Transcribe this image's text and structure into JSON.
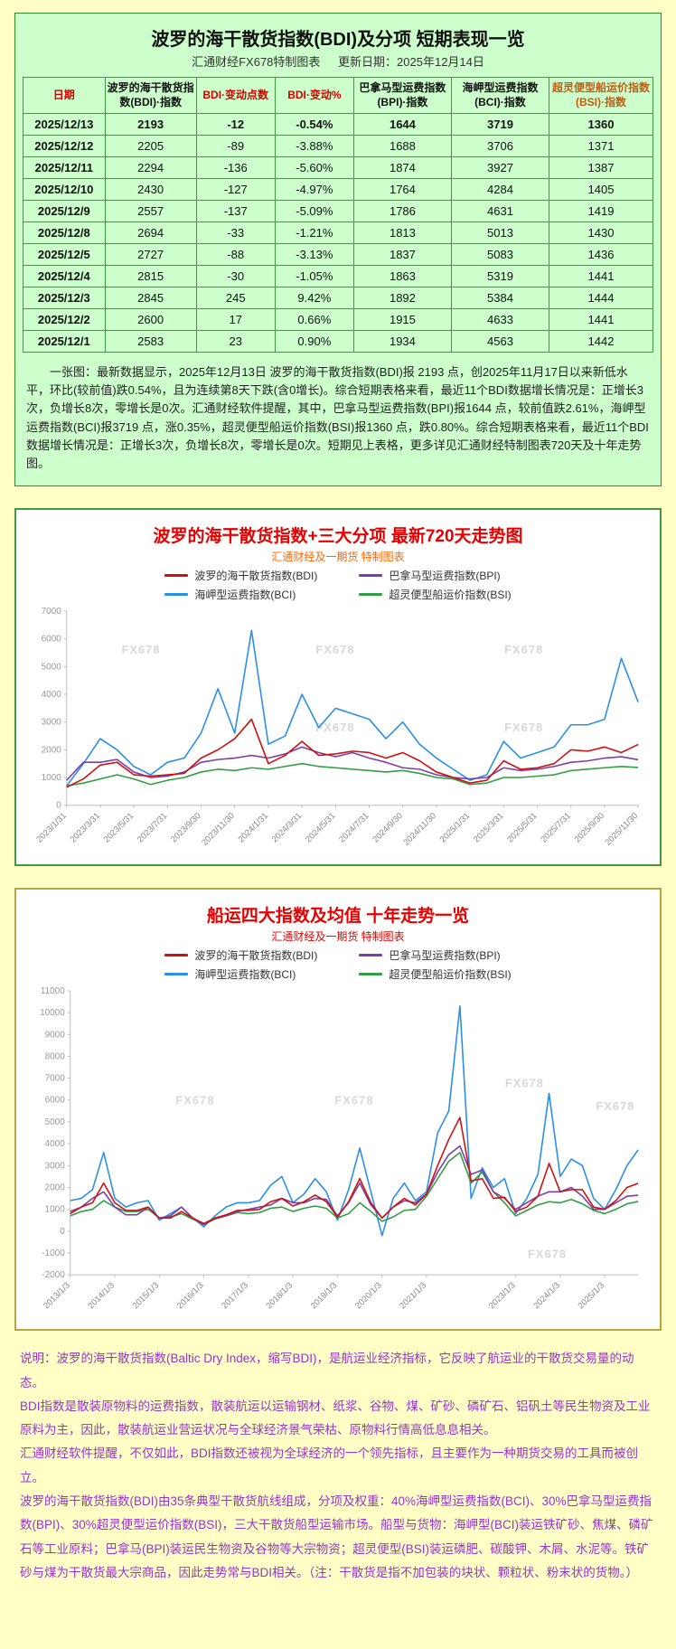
{
  "table_card": {
    "title": "波罗的海干散货指数(BDI)及分项 短期表现一览",
    "source": "汇通财经FX678特制图表",
    "update_date": "更新日期：2025年12月14日",
    "headers": [
      "日期",
      "波罗的海干散货指数(BDI)·指数",
      "BDI·变动点数",
      "BDI·变动%",
      "巴拿马型运费指数(BPI)·指数",
      "海岬型运费指数(BCI)·指数",
      "超灵便型船运价指数(BSI)·指数"
    ],
    "rows": [
      [
        "2025/12/13",
        "2193",
        "-12",
        "-0.54%",
        "1644",
        "3719",
        "1360"
      ],
      [
        "2025/12/12",
        "2205",
        "-89",
        "-3.88%",
        "1688",
        "3706",
        "1371"
      ],
      [
        "2025/12/11",
        "2294",
        "-136",
        "-5.60%",
        "1874",
        "3927",
        "1387"
      ],
      [
        "2025/12/10",
        "2430",
        "-127",
        "-4.97%",
        "1764",
        "4284",
        "1405"
      ],
      [
        "2025/12/9",
        "2557",
        "-137",
        "-5.09%",
        "1786",
        "4631",
        "1419"
      ],
      [
        "2025/12/8",
        "2694",
        "-33",
        "-1.21%",
        "1813",
        "5013",
        "1430"
      ],
      [
        "2025/12/5",
        "2727",
        "-88",
        "-3.13%",
        "1837",
        "5083",
        "1436"
      ],
      [
        "2025/12/4",
        "2815",
        "-30",
        "-1.05%",
        "1863",
        "5319",
        "1441"
      ],
      [
        "2025/12/3",
        "2845",
        "245",
        "9.42%",
        "1892",
        "5384",
        "1444"
      ],
      [
        "2025/12/2",
        "2600",
        "17",
        "0.66%",
        "1915",
        "4633",
        "1441"
      ],
      [
        "2025/12/1",
        "2583",
        "23",
        "0.90%",
        "1934",
        "4563",
        "1442"
      ]
    ],
    "summary": "一张图：最新数据显示，2025年12月13日 波罗的海干散货指数(BDI)报 2193 点，创2025年11月17日以来新低水平，环比(较前值)跌0.54%，且为连续第8天下跌(含0增长)。综合短期表格来看，最近11个BDI数据增长情况是：正增长3次，负增长8次，零增长是0次。汇通财经软件提醒，其中，巴拿马型运费指数(BPI)报1644 点，较前值跌2.61%，海岬型运费指数(BCI)报3719 点，涨0.35%，超灵便型船运价指数(BSI)报1360 点，跌0.80%。综合短期表格来看，最近11个BDI数据增长情况是：正增长3次，负增长8次，零增长是0次。短期见上表格，更多详见汇通财经特制图表720天及十年走势图。"
  },
  "chart_data": [
    {
      "type": "line",
      "title": "波罗的海干散货指数+三大分项  最新720天走势图",
      "subtitle": "汇通财经及一期货 特制图表",
      "watermark": "FX678",
      "ylim": [
        0,
        7000
      ],
      "ytick_step": 1000,
      "grid": false,
      "legend_position": "top",
      "draw_order": [
        2,
        3,
        1,
        0
      ],
      "x_ticks": [
        {
          "i": 0,
          "label": "2023/1/31"
        },
        {
          "i": 2,
          "label": "2023/3/31"
        },
        {
          "i": 4,
          "label": "2023/5/31"
        },
        {
          "i": 6,
          "label": "2023/7/31"
        },
        {
          "i": 8,
          "label": "2023/9/30"
        },
        {
          "i": 10,
          "label": "2023/11/30"
        },
        {
          "i": 12,
          "label": "2024/1/31"
        },
        {
          "i": 14,
          "label": "2024/3/31"
        },
        {
          "i": 16,
          "label": "2024/5/31"
        },
        {
          "i": 18,
          "label": "2024/7/31"
        },
        {
          "i": 20,
          "label": "2024/9/30"
        },
        {
          "i": 22,
          "label": "2024/11/30"
        },
        {
          "i": 24,
          "label": "2025/1/31"
        },
        {
          "i": 26,
          "label": "2025/3/31"
        },
        {
          "i": 28,
          "label": "2025/5/31"
        },
        {
          "i": 30,
          "label": "2025/7/31"
        },
        {
          "i": 32,
          "label": "2025/9/30"
        },
        {
          "i": 34,
          "label": "2025/11/30"
        }
      ],
      "series": [
        {
          "name": "波罗的海干散货指数(BDI)",
          "short": "bdi",
          "color": "#cc1111",
          "values": [
            650,
            950,
            1450,
            1550,
            1100,
            1050,
            1100,
            1150,
            1700,
            2000,
            2400,
            3100,
            1500,
            1800,
            2300,
            1800,
            1850,
            1950,
            1900,
            1700,
            1900,
            1600,
            1200,
            1000,
            800,
            900,
            1600,
            1300,
            1350,
            1500,
            2000,
            1950,
            2100,
            1900,
            2193
          ]
        },
        {
          "name": "巴拿马型运费指数(BPI)",
          "short": "bpi",
          "color": "#7a3fa8",
          "values": [
            900,
            1550,
            1550,
            1650,
            1200,
            1000,
            1050,
            1200,
            1550,
            1650,
            1700,
            1800,
            1700,
            1850,
            2100,
            1900,
            1750,
            1900,
            1700,
            1550,
            1350,
            1300,
            1100,
            1000,
            950,
            1000,
            1350,
            1250,
            1300,
            1400,
            1550,
            1600,
            1700,
            1750,
            1644
          ]
        },
        {
          "name": "海岬型运费指数(BCI)",
          "short": "bci",
          "color": "#2a8fe8",
          "values": [
            700,
            1500,
            2400,
            2000,
            1400,
            1100,
            1550,
            1700,
            2600,
            4200,
            2600,
            6300,
            2200,
            2500,
            4000,
            2800,
            3500,
            3300,
            3100,
            2400,
            3000,
            2200,
            1700,
            1300,
            900,
            1100,
            2300,
            1700,
            1900,
            2100,
            2900,
            2900,
            3100,
            5300,
            3719
          ]
        },
        {
          "name": "超灵便型船运价指数(BSI)",
          "short": "bsi",
          "color": "#2f9e44",
          "values": [
            700,
            800,
            950,
            1100,
            950,
            750,
            900,
            1000,
            1200,
            1300,
            1250,
            1350,
            1300,
            1400,
            1500,
            1400,
            1350,
            1300,
            1250,
            1200,
            1250,
            1150,
            1000,
            950,
            750,
            800,
            1000,
            1000,
            1050,
            1100,
            1250,
            1300,
            1350,
            1400,
            1360
          ]
        }
      ]
    },
    {
      "type": "line",
      "title": "船运四大指数及均值 十年走势一览",
      "subtitle": "汇通财经及一期货 特制图表",
      "watermark": "FX678",
      "ylim": [
        -2000,
        11000
      ],
      "ytick_step": 1000,
      "grid": false,
      "legend_position": "top",
      "draw_order": [
        2,
        3,
        1,
        0
      ],
      "x_ticks": [
        {
          "i": 0,
          "label": "2013/1/3"
        },
        {
          "i": 4,
          "label": "2014/1/3"
        },
        {
          "i": 8,
          "label": "2015/1/3"
        },
        {
          "i": 12,
          "label": "2016/1/3"
        },
        {
          "i": 16,
          "label": "2017/1/3"
        },
        {
          "i": 20,
          "label": "2018/1/3"
        },
        {
          "i": 24,
          "label": "2019/1/3"
        },
        {
          "i": 28,
          "label": "2020/1/3"
        },
        {
          "i": 32,
          "label": "2021/1/3"
        },
        {
          "i": 40,
          "label": "2023/1/3"
        },
        {
          "i": 44,
          "label": "2024/1/3"
        },
        {
          "i": 48,
          "label": "2025/1/3"
        }
      ],
      "series": [
        {
          "name": "波罗的海干散货指数(BDI)",
          "short": "bdi",
          "color": "#cc1111",
          "values": [
            800,
            1100,
            1300,
            2200,
            1300,
            950,
            950,
            1100,
            600,
            600,
            900,
            600,
            350,
            600,
            750,
            950,
            950,
            1000,
            1350,
            1500,
            1150,
            1350,
            1650,
            1350,
            650,
            1350,
            2400,
            1300,
            600,
            1100,
            1500,
            1200,
            1700,
            3000,
            4200,
            5200,
            2300,
            2400,
            1500,
            1550,
            900,
            1100,
            1600,
            3100,
            1800,
            1900,
            1900,
            1100,
            1000,
            1400,
            2000,
            2193
          ]
        },
        {
          "name": "巴拿马型运费指数(BPI)",
          "short": "bpi",
          "color": "#7a3fa8",
          "values": [
            900,
            1100,
            1500,
            1800,
            1100,
            750,
            750,
            1100,
            600,
            700,
            1100,
            600,
            300,
            600,
            700,
            900,
            1000,
            1100,
            1200,
            1500,
            1300,
            1300,
            1500,
            1450,
            700,
            1300,
            2200,
            1200,
            600,
            1100,
            1400,
            1300,
            1700,
            2700,
            3500,
            3900,
            2600,
            2800,
            1800,
            1500,
            1000,
            1300,
            1600,
            1800,
            1800,
            2000,
            1600,
            1000,
            1000,
            1300,
            1600,
            1644
          ]
        },
        {
          "name": "海岬型运费指数(BCI)",
          "short": "bci",
          "color": "#2a8fe8",
          "values": [
            1400,
            1500,
            1900,
            3600,
            1500,
            1100,
            1300,
            1400,
            500,
            800,
            1100,
            600,
            200,
            700,
            1100,
            1300,
            1300,
            1400,
            2100,
            2500,
            1300,
            1700,
            2400,
            1800,
            500,
            1900,
            3800,
            1800,
            -200,
            1500,
            2200,
            1400,
            1800,
            4500,
            5500,
            10300,
            1500,
            2900,
            2000,
            2400,
            800,
            1500,
            2600,
            6300,
            2500,
            3300,
            3000,
            1500,
            1000,
            1900,
            3000,
            3719
          ]
        },
        {
          "name": "超灵便型船运价指数(BSI)",
          "short": "bsi",
          "color": "#2f9e44",
          "values": [
            700,
            900,
            1000,
            1400,
            1100,
            900,
            900,
            1000,
            600,
            650,
            800,
            550,
            300,
            550,
            700,
            850,
            800,
            850,
            1050,
            1100,
            900,
            1050,
            1150,
            1050,
            600,
            800,
            1300,
            900,
            450,
            650,
            950,
            1000,
            1600,
            2400,
            3200,
            3600,
            2200,
            2700,
            1800,
            1300,
            700,
            950,
            1200,
            1350,
            1300,
            1450,
            1250,
            950,
            800,
            1000,
            1250,
            1360
          ]
        }
      ]
    }
  ],
  "notes": {
    "paragraphs": [
      "说明：波罗的海干散货指数(Baltic Dry Index，缩写BDI)，是航运业经济指标，它反映了航运业的干散货交易量的动态。",
      "BDI指数是散装原物料的运费指数，散装航运以运输钢材、纸浆、谷物、煤、矿砂、磷矿石、铝矾土等民生物资及工业原料为主，因此，散装航运业营运状况与全球经济景气荣枯、原物料行情高低息息相关。",
      "汇通财经软件提醒，不仅如此，BDI指数还被视为全球经济的一个领先指标，且主要作为一种期货交易的工具而被创立。",
      "波罗的海干散货指数(BDI)由35条典型干散货航线组成，分项及权重：40%海岬型运费指数(BCI)、30%巴拿马型运费指数(BPI)、30%超灵便型运价指数(BSI)，三大干散货船型运输市场。船型与货物：海岬型(BCI)装运铁矿砂、焦煤、磷矿石等工业原料；巴拿马(BPI)装运民生物资及谷物等大宗物资；超灵便型(BSI)装运磷肥、碳酸钾、木屑、水泥等。铁矿砂与煤为干散货最大宗商品，因此走势常与BDI相关。（注：干散货是指不加包装的块状、颗粒状、粉末状的货物。）"
    ]
  },
  "colors": {
    "page_bg": "#ffffc6",
    "table_bg": "#ccffcc",
    "table_border": "#2e8b2e",
    "chart720_border": "#3f9b3f",
    "chart10y_border": "#b5a642",
    "title_red": "#e60000",
    "notes_purple": "#9933cc",
    "bdi": "#cc1111",
    "bpi": "#7a3fa8",
    "bci": "#2a8fe8",
    "bsi": "#2f9e44"
  }
}
